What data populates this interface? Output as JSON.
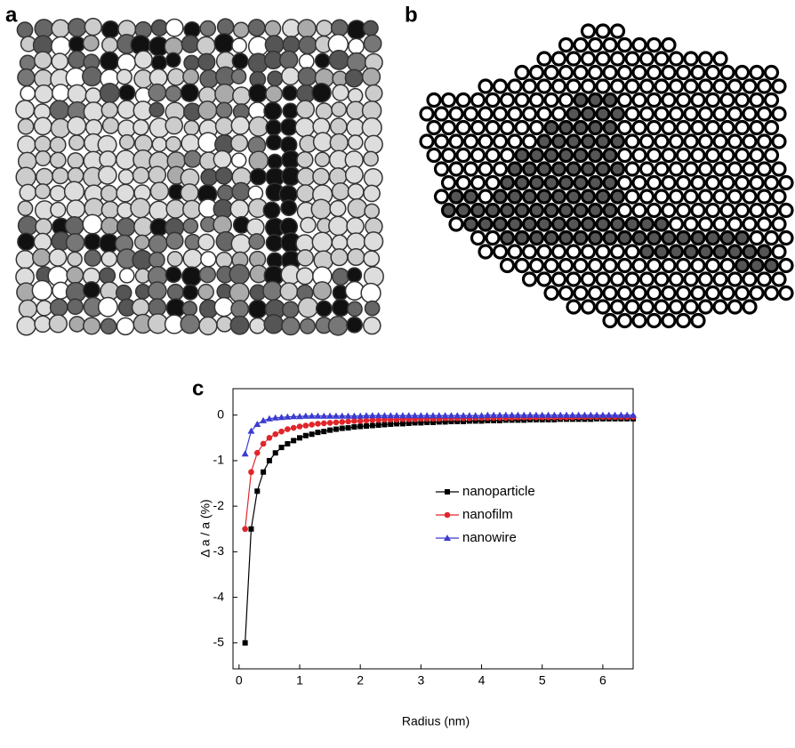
{
  "panel_labels": [
    "a",
    "b",
    "c"
  ],
  "chart_data": {
    "type": "line",
    "x_label": "Radius (nm)",
    "y_label": "Δ a / a (%)",
    "x": [
      0.1,
      0.2,
      0.3,
      0.4,
      0.5,
      0.6,
      0.7,
      0.8,
      0.9,
      1.0,
      1.1,
      1.2,
      1.3,
      1.4,
      1.5,
      1.6,
      1.7,
      1.8,
      1.9,
      2.0,
      2.1,
      2.2,
      2.3,
      2.4,
      2.5,
      2.6,
      2.7,
      2.8,
      2.9,
      3.0,
      3.1,
      3.2,
      3.3,
      3.4,
      3.5,
      3.6,
      3.7,
      3.8,
      3.9,
      4.0,
      4.1,
      4.2,
      4.3,
      4.4,
      4.5,
      4.6,
      4.7,
      4.8,
      4.9,
      5.0,
      5.1,
      5.2,
      5.3,
      5.4,
      5.5,
      5.6,
      5.7,
      5.8,
      5.9,
      6.0,
      6.1,
      6.2,
      6.3,
      6.4,
      6.5
    ],
    "series": [
      {
        "name": "nanoparticle",
        "color": "#000000",
        "marker": "square",
        "values": [
          -5,
          -2.5,
          -1.67,
          -1.25,
          -1,
          -0.83,
          -0.71,
          -0.63,
          -0.56,
          -0.5,
          -0.45,
          -0.42,
          -0.38,
          -0.36,
          -0.33,
          -0.31,
          -0.29,
          -0.28,
          -0.26,
          -0.25,
          -0.24,
          -0.23,
          -0.22,
          -0.21,
          -0.2,
          -0.19,
          -0.19,
          -0.18,
          -0.17,
          -0.17,
          -0.16,
          -0.16,
          -0.15,
          -0.15,
          -0.14,
          -0.14,
          -0.14,
          -0.13,
          -0.13,
          -0.13,
          -0.12,
          -0.12,
          -0.12,
          -0.11,
          -0.11,
          -0.11,
          -0.11,
          -0.1,
          -0.1,
          -0.1,
          -0.1,
          -0.1,
          -0.09,
          -0.09,
          -0.09,
          -0.09,
          -0.09,
          -0.09,
          -0.08,
          -0.08,
          -0.08,
          -0.08,
          -0.08,
          -0.08,
          -0.08
        ]
      },
      {
        "name": "nanofilm",
        "color": "#e0262b",
        "marker": "circle",
        "values": [
          -2.5,
          -1.25,
          -0.83,
          -0.63,
          -0.5,
          -0.42,
          -0.36,
          -0.31,
          -0.28,
          -0.25,
          -0.23,
          -0.21,
          -0.19,
          -0.18,
          -0.17,
          -0.16,
          -0.15,
          -0.14,
          -0.13,
          -0.13,
          -0.12,
          -0.11,
          -0.11,
          -0.1,
          -0.1,
          -0.1,
          -0.09,
          -0.09,
          -0.09,
          -0.08,
          -0.08,
          -0.08,
          -0.08,
          -0.07,
          -0.07,
          -0.07,
          -0.07,
          -0.07,
          -0.06,
          -0.06,
          -0.06,
          -0.06,
          -0.06,
          -0.06,
          -0.06,
          -0.05,
          -0.05,
          -0.05,
          -0.05,
          -0.05,
          -0.05,
          -0.05,
          -0.05,
          -0.05,
          -0.05,
          -0.04,
          -0.04,
          -0.04,
          -0.04,
          -0.04,
          -0.04,
          -0.04,
          -0.04,
          -0.04,
          -0.04
        ]
      },
      {
        "name": "nanowire",
        "color": "#3b3bd0",
        "marker": "triangle",
        "values": [
          -0.85,
          -0.35,
          -0.2,
          -0.12,
          -0.08,
          -0.06,
          -0.05,
          -0.04,
          -0.03,
          -0.03,
          -0.02,
          -0.02,
          -0.02,
          -0.02,
          -0.02,
          -0.02,
          -0.02,
          -0.02,
          -0.02,
          -0.02,
          -0.01,
          -0.01,
          -0.01,
          -0.01,
          -0.01,
          -0.01,
          -0.01,
          -0.01,
          -0.01,
          -0.01,
          -0.01,
          -0.01,
          -0.01,
          -0.01,
          -0.01,
          -0.01,
          -0.01,
          -0.01,
          -0.01,
          -0.01,
          0,
          0,
          0,
          0,
          0,
          0,
          0,
          0,
          0,
          0,
          0,
          0,
          0,
          0,
          0,
          0,
          0,
          0,
          0,
          0,
          0,
          0,
          0,
          0,
          0
        ]
      }
    ],
    "xlim": [
      -0.1,
      6.5
    ],
    "ylim": [
      -5.57,
      0.58
    ],
    "xticks": [
      0,
      1,
      2,
      3,
      4,
      5,
      6
    ],
    "yticks": [
      0,
      -1,
      -2,
      -3,
      -4,
      -5
    ],
    "grid": false,
    "legend_position": "right"
  }
}
